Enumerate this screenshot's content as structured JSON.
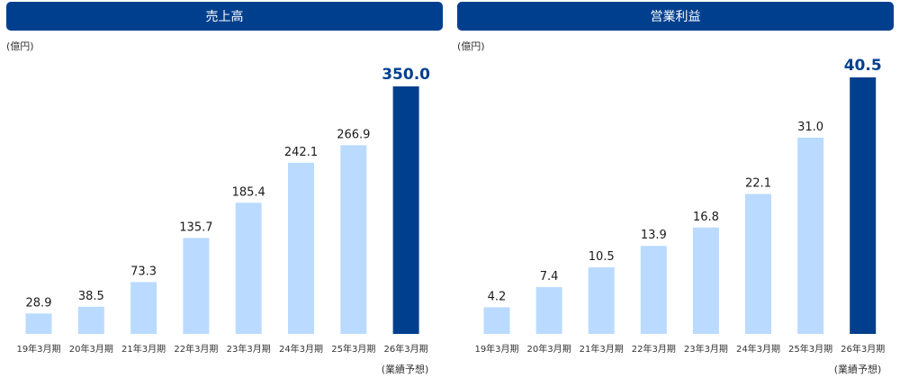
{
  "colors": {
    "header_bg": "#003f8e",
    "bar_actual": "#badbff",
    "bar_forecast": "#003f8e",
    "highlight_text": "#003f8e"
  },
  "chart_data": [
    {
      "type": "bar",
      "title": "売上高",
      "ylabel": "(億円)",
      "categories": [
        "19年3月期",
        "20年3月期",
        "21年3月期",
        "22年3月期",
        "23年3月期",
        "24年3月期",
        "25年3月期",
        "26年3月期"
      ],
      "values": [
        28.9,
        38.5,
        73.3,
        135.7,
        185.4,
        242.1,
        266.9,
        350.0
      ],
      "value_labels": [
        "28.9",
        "38.5",
        "73.3",
        "135.7",
        "185.4",
        "242.1",
        "266.9",
        "350.0"
      ],
      "highlight_index": 7,
      "note": "(業績予想)",
      "ylim": [
        0,
        350
      ],
      "grid": false
    },
    {
      "type": "bar",
      "title": "営業利益",
      "ylabel": "(億円)",
      "categories": [
        "19年3月期",
        "20年3月期",
        "21年3月期",
        "22年3月期",
        "23年3月期",
        "24年3月期",
        "25年3月期",
        "26年3月期"
      ],
      "values": [
        4.2,
        7.4,
        10.5,
        13.9,
        16.8,
        22.1,
        31.0,
        40.5
      ],
      "value_labels": [
        "4.2",
        "7.4",
        "10.5",
        "13.9",
        "16.8",
        "22.1",
        "31.0",
        "40.5"
      ],
      "highlight_index": 7,
      "note": "(業績予想)",
      "ylim": [
        0,
        40.5
      ],
      "grid": false
    }
  ]
}
